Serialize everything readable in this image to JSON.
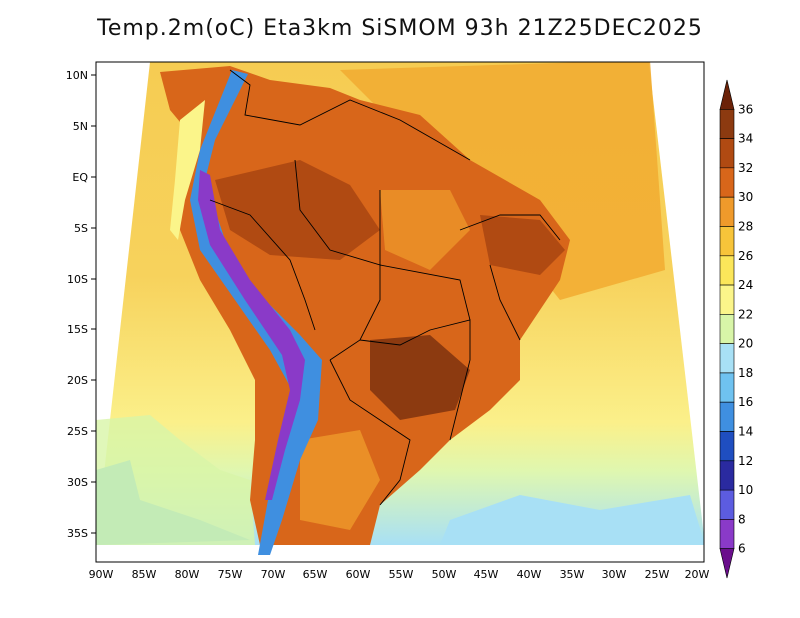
{
  "title": "Temp.2m(oC) Eta3km SiSMOM 93h 21Z25DEC2025",
  "lat_ticks": [
    "10N",
    "5N",
    "EQ",
    "5S",
    "10S",
    "15S",
    "20S",
    "25S",
    "30S",
    "35S"
  ],
  "lon_ticks": [
    "90W",
    "85W",
    "80W",
    "75W",
    "70W",
    "65W",
    "60W",
    "55W",
    "50W",
    "45W",
    "40W",
    "35W",
    "30W",
    "25W",
    "20W"
  ],
  "colorbar": {
    "labels": [
      "36",
      "34",
      "32",
      "30",
      "28",
      "26",
      "24",
      "22",
      "20",
      "18",
      "16",
      "14",
      "12",
      "10",
      "8",
      "6"
    ],
    "colors": [
      "#6b2208",
      "#8c3a10",
      "#b04a12",
      "#d8661a",
      "#ef9a2b",
      "#f7c43a",
      "#fbe65a",
      "#fbf58a",
      "#d8f5a8",
      "#a8e0f5",
      "#6fc2f0",
      "#3f8fe0",
      "#1f4ec0",
      "#2a2aa0",
      "#5c5ce0",
      "#8a3ac8",
      "#6a0e8c"
    ]
  }
}
